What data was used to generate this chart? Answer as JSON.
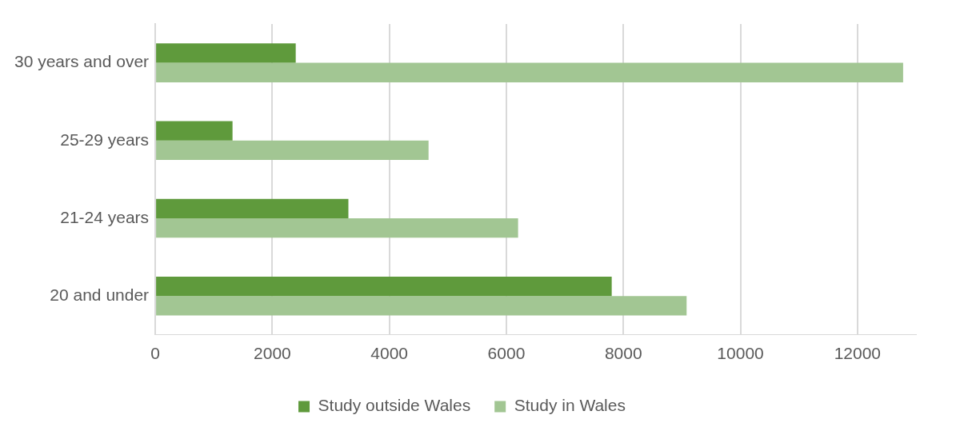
{
  "chart_data": {
    "type": "bar",
    "orientation": "horizontal",
    "categories": [
      "30 years and over",
      "25-29 years",
      "21-24 years",
      "20 and under"
    ],
    "series": [
      {
        "name": "Study outside Wales",
        "color": "#5f9a3c",
        "values": [
          2400,
          1320,
          3300,
          7800
        ]
      },
      {
        "name": "Study in Wales",
        "color": "#a2c693",
        "values": [
          12780,
          4670,
          6200,
          9080
        ]
      }
    ],
    "xlim": [
      0,
      13000
    ],
    "xticks": [
      0,
      2000,
      4000,
      6000,
      8000,
      10000,
      12000
    ],
    "grid": "x",
    "legend": "bottom"
  }
}
